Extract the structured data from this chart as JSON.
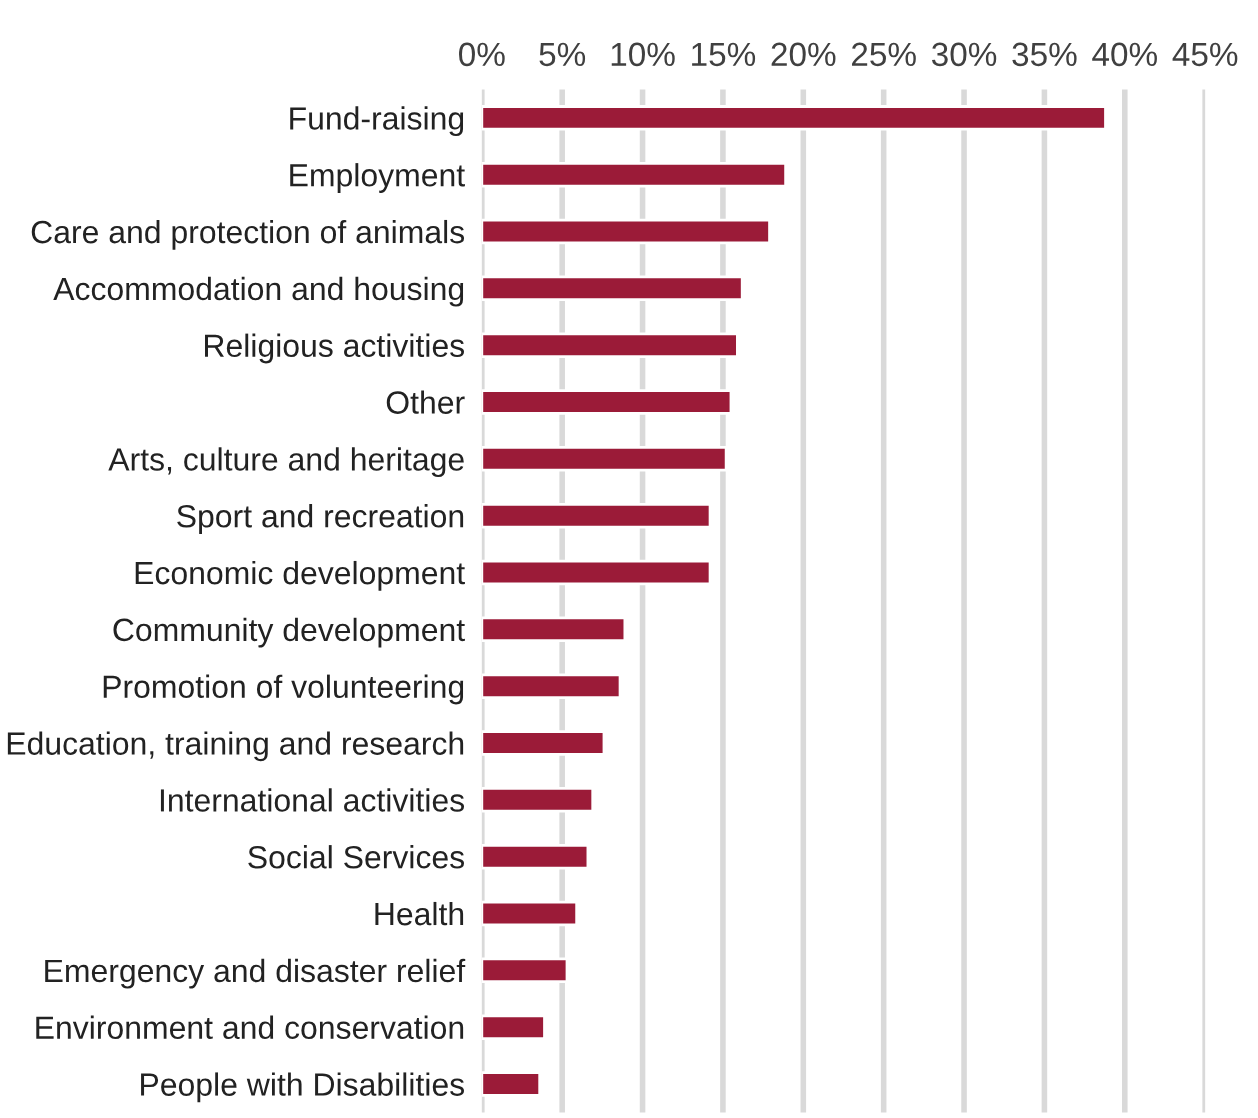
{
  "chart_data": {
    "type": "bar",
    "orientation": "horizontal",
    "categories": [
      "Fund-raising",
      "Employment",
      "Care and protection of animals",
      "Accommodation and housing",
      "Religious activities",
      "Other",
      "Arts, culture and heritage",
      "Sport and recreation",
      "Economic development",
      "Community development",
      "Promotion of volunteering",
      "Education, training and research",
      "International activities",
      "Social Services",
      "Health",
      "Emergency and disaster relief",
      "Environment and conservation",
      "People with Disabilities"
    ],
    "values": [
      38.8,
      18.9,
      17.9,
      16.2,
      15.9,
      15.5,
      15.2,
      14.2,
      14.2,
      8.9,
      8.6,
      7.6,
      6.9,
      6.6,
      5.9,
      5.3,
      3.9,
      3.6
    ],
    "color": "#9b1b38",
    "xlim": [
      0,
      45
    ],
    "xticks": [
      {
        "value": 0,
        "label": "0%"
      },
      {
        "value": 5,
        "label": "5%"
      },
      {
        "value": 10,
        "label": "10%"
      },
      {
        "value": 15,
        "label": "15%"
      },
      {
        "value": 20,
        "label": "20%"
      },
      {
        "value": 25,
        "label": "25%"
      },
      {
        "value": 30,
        "label": "30%"
      },
      {
        "value": 35,
        "label": "35%"
      },
      {
        "value": 40,
        "label": "40%"
      },
      {
        "value": 45,
        "label": "45%"
      }
    ],
    "grid": "x"
  }
}
